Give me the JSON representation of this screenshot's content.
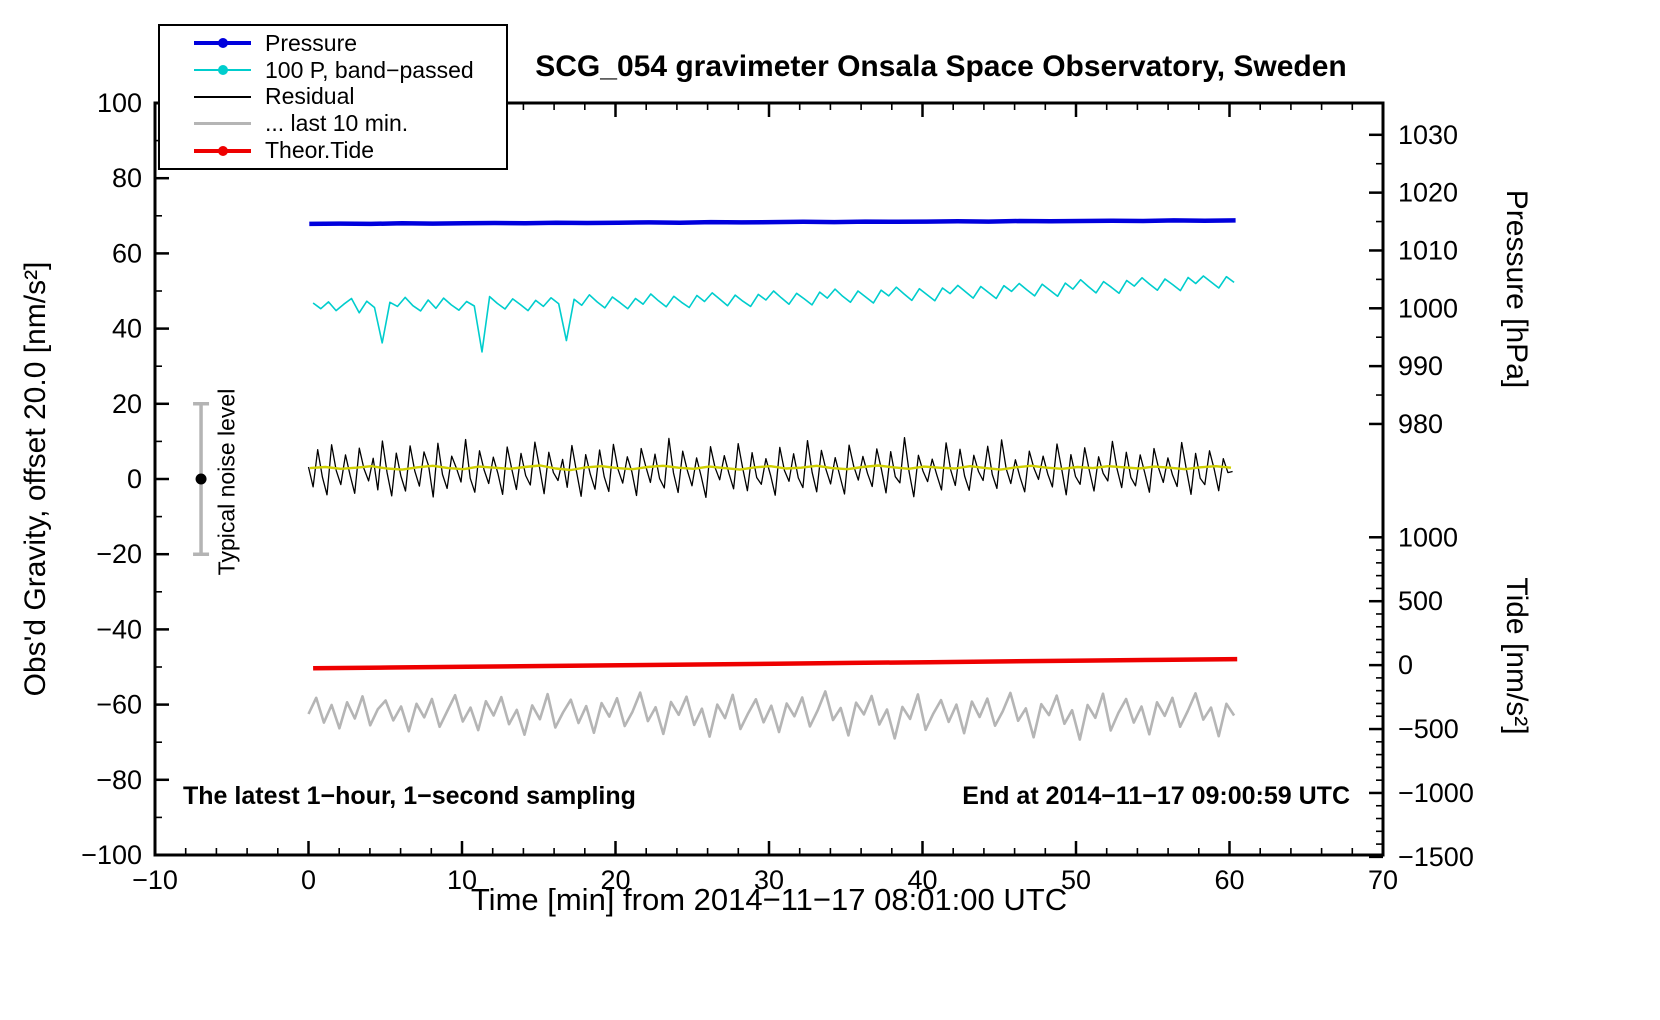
{
  "chart_data": {
    "type": "line",
    "title": "SCG_054 gravimeter Onsala Space Observatory, Sweden",
    "notes": {
      "sampling": "The latest 1−hour, 1−second sampling",
      "end": "End at 2014−11−17 09:00:59 UTC"
    },
    "axes": {
      "x": {
        "label": "Time [min] from 2014−11−17 08:01:00 UTC",
        "range": [
          -10,
          70
        ],
        "ticks": [
          -10,
          0,
          10,
          20,
          30,
          40,
          50,
          60,
          70
        ],
        "minor_step": 2
      },
      "gravity": {
        "label": "Obs'd Gravity, offset 20.0 [nm/s²]",
        "range": [
          -100,
          100
        ],
        "ticks": [
          -100,
          -80,
          -60,
          -40,
          -20,
          0,
          20,
          40,
          60,
          80,
          100
        ],
        "minor_step": 10
      },
      "pressure": {
        "label": "Pressure [hPa]",
        "ticks": [
          980,
          990,
          1000,
          1010,
          1020,
          1030
        ],
        "minor_step": 5,
        "g_at_1000": 45.4,
        "g_per_hPa": 1.538
      },
      "tide": {
        "label": "Tide [nm/s²]",
        "ticks": [
          -1500,
          -1000,
          -500,
          0,
          500,
          1000
        ],
        "minor_step": 100,
        "g_at_0": -49.5,
        "g_per_unit": 0.034
      }
    },
    "legend": [
      {
        "label": "Pressure",
        "color": "#0000dd",
        "marker": true,
        "width": 4
      },
      {
        "label": "100 P, band−passed",
        "color": "#00cdcd",
        "marker": true,
        "width": 2
      },
      {
        "label": "Residual",
        "color": "#000000",
        "marker": false,
        "width": 2
      },
      {
        "label": "... last 10 min.",
        "color": "#b5b5b5",
        "marker": false,
        "width": 3
      },
      {
        "label": "Theor.Tide",
        "color": "#ee0000",
        "marker": true,
        "width": 4
      }
    ],
    "noise_marker": {
      "x": -7,
      "center": 0,
      "half_range": 20,
      "label": "Typical noise level",
      "bar_color": "#b4b4b4",
      "dot_color": "#000000"
    },
    "series": [
      {
        "name": "band_passed",
        "axis": "gravity",
        "color": "#00cdcd",
        "width": 1.6,
        "x_start": 0.3,
        "x_end": 60.3,
        "values": [
          46.8,
          45.3,
          47.1,
          44.8,
          46.5,
          48.0,
          44.2,
          47.3,
          45.6,
          36.2,
          47.0,
          45.9,
          48.3,
          46.1,
          44.7,
          47.6,
          45.4,
          48.1,
          46.3,
          44.9,
          47.2,
          46.0,
          33.8,
          48.5,
          46.7,
          45.2,
          47.9,
          46.4,
          44.8,
          47.5,
          45.9,
          48.2,
          46.6,
          36.8,
          47.8,
          46.2,
          49.0,
          47.1,
          45.5,
          48.4,
          46.9,
          45.3,
          48.0,
          46.5,
          49.2,
          47.4,
          45.8,
          48.6,
          47.0,
          45.6,
          48.8,
          47.2,
          49.5,
          47.8,
          46.1,
          48.9,
          47.3,
          45.9,
          49.1,
          47.6,
          50.0,
          48.2,
          46.5,
          49.4,
          47.9,
          46.3,
          49.7,
          48.1,
          50.5,
          48.6,
          47.0,
          50.0,
          48.4,
          46.8,
          50.2,
          48.7,
          51.0,
          49.2,
          47.5,
          50.6,
          49.0,
          47.4,
          50.8,
          49.3,
          51.5,
          49.8,
          48.1,
          51.2,
          49.6,
          48.0,
          51.4,
          49.9,
          52.0,
          50.3,
          48.7,
          51.8,
          50.2,
          48.6,
          52.1,
          50.5,
          53.0,
          51.2,
          49.5,
          52.5,
          51.0,
          49.4,
          52.8,
          51.3,
          53.5,
          51.8,
          50.2,
          53.2,
          51.7,
          50.1,
          53.6,
          52.0,
          54.0,
          52.4,
          50.8,
          53.8,
          52.3
        ]
      },
      {
        "name": "last_10_min",
        "axis": "gravity",
        "color": "#b5b5b5",
        "width": 2.6,
        "x_start": 0.0,
        "x_end": 60.3,
        "values": [
          -62.5,
          -58.2,
          -64.8,
          -60.1,
          -66.3,
          -59.4,
          -63.7,
          -57.8,
          -65.5,
          -61.2,
          -58.9,
          -64.2,
          -60.5,
          -67.1,
          -59.8,
          -63.4,
          -58.5,
          -65.9,
          -61.7,
          -57.5,
          -64.5,
          -60.8,
          -66.8,
          -59.1,
          -62.9,
          -58.0,
          -65.2,
          -61.4,
          -68.0,
          -60.2,
          -63.9,
          -57.2,
          -66.1,
          -62.1,
          -58.7,
          -64.9,
          -60.4,
          -67.5,
          -59.6,
          -63.2,
          -58.3,
          -65.7,
          -61.9,
          -56.8,
          -64.4,
          -60.7,
          -67.8,
          -59.3,
          -62.7,
          -57.9,
          -65.4,
          -61.1,
          -68.5,
          -60.0,
          -63.6,
          -57.4,
          -66.5,
          -62.3,
          -58.6,
          -64.7,
          -60.3,
          -67.3,
          -59.7,
          -63.1,
          -58.1,
          -65.8,
          -61.6,
          -56.5,
          -64.1,
          -60.9,
          -68.2,
          -59.5,
          -62.6,
          -57.7,
          -65.3,
          -61.3,
          -69.0,
          -60.6,
          -63.8,
          -57.3,
          -66.7,
          -62.4,
          -58.8,
          -64.6,
          -60.0,
          -67.6,
          -59.2,
          -63.3,
          -58.4,
          -65.6,
          -61.8,
          -56.9,
          -64.3,
          -61.0,
          -68.7,
          -59.9,
          -62.8,
          -57.6,
          -65.1,
          -61.5,
          -69.3,
          -60.1,
          -63.5,
          -57.1,
          -66.9,
          -62.2,
          -58.5,
          -64.8,
          -60.5,
          -67.9,
          -59.4,
          -63.0,
          -58.2,
          -65.9,
          -61.7,
          -57.0,
          -64.0,
          -60.8,
          -68.4,
          -59.8,
          -62.9
        ]
      },
      {
        "name": "residual",
        "axis": "gravity",
        "color": "#000000",
        "width": 1.3,
        "x_start": 0.0,
        "x_end": 60.2,
        "values": [
          3.2,
          -2.1,
          7.8,
          0.5,
          -4.2,
          9.1,
          2.3,
          -1.5,
          6.4,
          1.0,
          -3.8,
          8.2,
          2.8,
          -0.5,
          5.5,
          -2.9,
          10.1,
          1.8,
          -4.5,
          6.9,
          0.8,
          -3.2,
          8.8,
          2.1,
          -1.9,
          7.2,
          3.5,
          -4.8,
          9.5,
          1.2,
          -2.5,
          6.1,
          2.9,
          -0.8,
          10.5,
          0.2,
          -3.5,
          7.5,
          2.4,
          -1.2,
          5.8,
          1.5,
          -4.1,
          8.5,
          2.6,
          -2.8,
          6.8,
          0.9,
          -1.6,
          9.8,
          3.1,
          -3.9,
          7.1,
          1.7,
          -0.4,
          5.2,
          -2.2,
          8.9,
          2.0,
          -4.6,
          6.5,
          1.3,
          -2.7,
          7.7,
          0.6,
          -3.3,
          9.2,
          2.5,
          -1.1,
          5.9,
          1.9,
          -4.4,
          8.1,
          3.3,
          -0.9,
          6.6,
          0.1,
          -2.4,
          10.8,
          1.6,
          -3.6,
          7.4,
          2.2,
          -1.8,
          5.6,
          0.7,
          -4.9,
          8.6,
          3.0,
          -0.2,
          6.2,
          1.4,
          -2.6,
          9.4,
          2.7,
          -3.1,
          7.0,
          0.4,
          -1.4,
          5.4,
          1.1,
          -4.3,
          8.4,
          2.3,
          -0.6,
          6.7,
          0.3,
          -2.3,
          10.2,
          1.8,
          -3.4,
          7.6,
          2.5,
          -1.3,
          5.7,
          0.9,
          -4.0,
          9.0,
          3.4,
          -0.3,
          6.0,
          1.4,
          -2.0,
          8.0,
          2.6,
          -3.7,
          7.3,
          0.6,
          -1.0,
          11.0,
          1.9,
          -4.7,
          6.3,
          2.1,
          -0.7,
          5.3,
          1.0,
          -2.9,
          9.6,
          2.4,
          -1.7,
          7.9,
          0.8,
          -3.0,
          6.3,
          2.0,
          -0.4,
          8.7,
          1.2,
          -2.5,
          10.4,
          2.7,
          -1.2,
          5.1,
          0.5,
          -3.4,
          7.4,
          2.9,
          -0.1,
          6.1,
          1.3,
          -2.1,
          9.3,
          2.8,
          -4.2,
          6.5,
          0.7,
          -1.4,
          8.3,
          2.3,
          -3.2,
          5.9,
          1.5,
          -0.5,
          10.0,
          2.6,
          -2.3,
          7.1,
          0.4,
          -1.8,
          6.4,
          1.6,
          -3.5,
          8.1,
          2.9,
          -0.9,
          5.6,
          1.1,
          -2.0,
          9.7,
          2.5,
          -4.1,
          6.8,
          0.2,
          -1.5,
          7.5,
          2.7,
          -3.1,
          5.4,
          1.7,
          2.0
        ]
      },
      {
        "name": "residual_smoothed",
        "axis": "gravity",
        "color": "#cfcf00",
        "width": 2.4,
        "x_start": 0.1,
        "x_end": 60.1,
        "values": [
          2.9,
          3.2,
          2.7,
          3.0,
          3.4,
          2.8,
          2.5,
          3.1,
          3.5,
          2.9,
          2.6,
          3.3,
          3.0,
          2.7,
          3.2,
          3.6,
          2.8,
          2.4,
          3.1,
          3.4,
          2.9,
          2.6,
          3.2,
          3.5,
          3.0,
          2.7,
          3.3,
          2.9,
          2.5,
          3.1,
          3.4,
          2.8,
          3.0,
          3.5,
          2.9,
          2.6,
          3.2,
          3.6,
          3.1,
          2.7,
          3.3,
          3.0,
          2.8,
          3.4,
          2.9,
          2.5,
          3.1,
          3.5,
          3.0,
          2.7,
          3.2,
          2.9,
          3.4,
          3.1,
          2.8,
          3.3,
          3.0,
          2.6,
          3.1,
          3.4,
          3.0
        ]
      },
      {
        "name": "theor_tide",
        "axis": "tide",
        "color": "#ee0000",
        "width": 4.5,
        "x_start": 0.3,
        "x_end": 60.5,
        "values": [
          -25,
          -19,
          -13,
          -7,
          -1,
          5,
          11,
          17,
          23,
          29,
          35,
          41,
          47
        ]
      },
      {
        "name": "pressure",
        "axis": "pressure",
        "color": "#0000dd",
        "width": 4.5,
        "x_start": 0.05,
        "x_end": 60.4,
        "values": [
          1014.6,
          1014.65,
          1014.6,
          1014.7,
          1014.65,
          1014.7,
          1014.75,
          1014.7,
          1014.8,
          1014.75,
          1014.8,
          1014.85,
          1014.8,
          1014.9,
          1014.85,
          1014.9,
          1014.95,
          1014.9,
          1015.0,
          1014.95,
          1015.0,
          1015.05,
          1015.0,
          1015.1,
          1015.05,
          1015.1,
          1015.15,
          1015.1,
          1015.2,
          1015.15,
          1015.2
        ]
      }
    ]
  }
}
